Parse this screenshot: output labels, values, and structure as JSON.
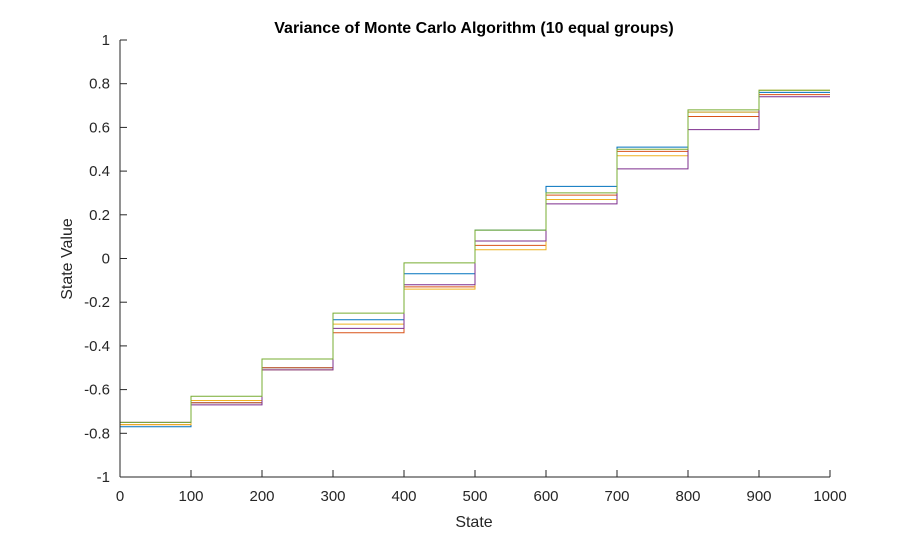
{
  "chart_data": {
    "type": "line",
    "title": "Variance of Monte Carlo Algorithm (10 equal groups)",
    "xlabel": "State",
    "ylabel": "State Value",
    "xlim": [
      0,
      1000
    ],
    "ylim": [
      -1,
      1
    ],
    "xticks": [
      "0",
      "100",
      "200",
      "300",
      "400",
      "500",
      "600",
      "700",
      "800",
      "900",
      "1000"
    ],
    "yticks": [
      "-1",
      "-0.8",
      "-0.6",
      "-0.4",
      "-0.2",
      "0",
      "0.2",
      "0.4",
      "0.6",
      "0.8",
      "1"
    ],
    "grid": false,
    "step_groups": [
      0,
      100,
      200,
      300,
      400,
      500,
      600,
      700,
      800,
      900,
      1000
    ],
    "series": [
      {
        "color": "#0072BD",
        "values": [
          -0.77,
          -0.66,
          -0.5,
          -0.28,
          -0.07,
          0.13,
          0.33,
          0.51,
          0.67,
          0.76
        ]
      },
      {
        "color": "#D95319",
        "values": [
          -0.76,
          -0.66,
          -0.5,
          -0.34,
          -0.13,
          0.06,
          0.29,
          0.49,
          0.65,
          0.75
        ]
      },
      {
        "color": "#EDB120",
        "values": [
          -0.76,
          -0.65,
          -0.51,
          -0.3,
          -0.14,
          0.04,
          0.27,
          0.47,
          0.67,
          0.77
        ]
      },
      {
        "color": "#7E2F8E",
        "values": [
          -0.75,
          -0.67,
          -0.51,
          -0.32,
          -0.12,
          0.08,
          0.25,
          0.41,
          0.59,
          0.74
        ]
      },
      {
        "color": "#77AC30",
        "values": [
          -0.75,
          -0.63,
          -0.46,
          -0.25,
          -0.02,
          0.13,
          0.3,
          0.5,
          0.68,
          0.77
        ]
      }
    ]
  }
}
